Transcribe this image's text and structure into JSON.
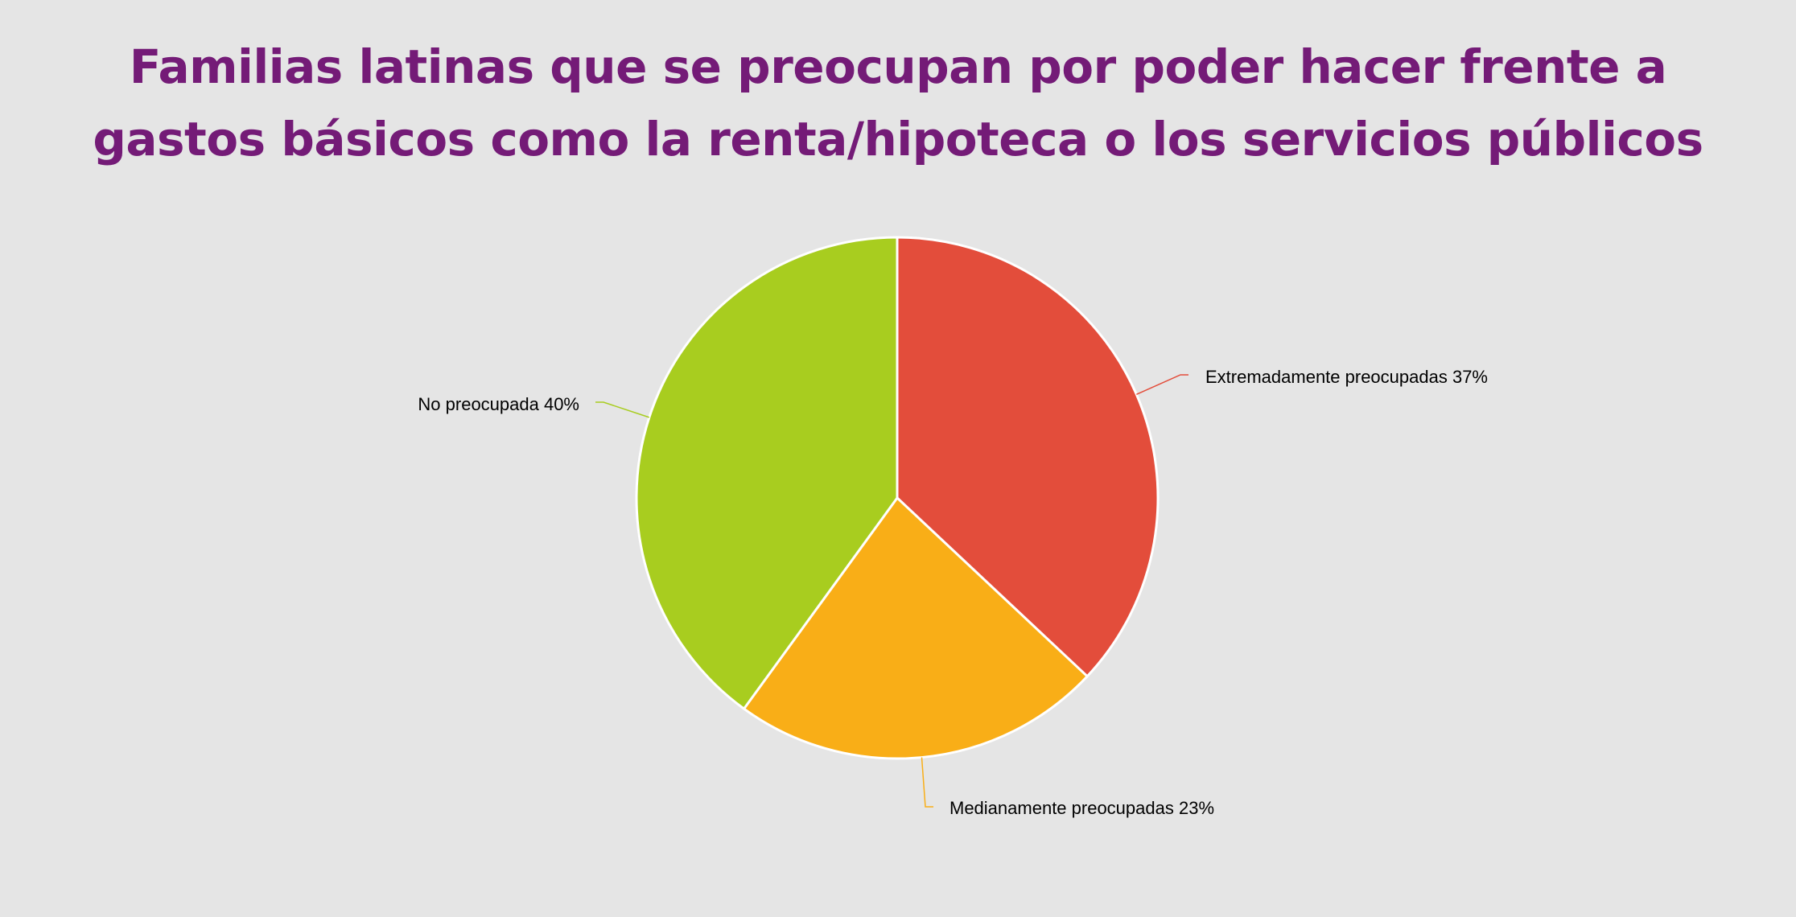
{
  "chart_data": {
    "type": "pie",
    "title": "Familias latinas que se preocupan por poder hacer frente a gastos básicos como la renta/hipoteca o los servicios públicos",
    "categories": [
      "Extremadamente preocupadas",
      "Medianamente preocupadas",
      "No preocupada"
    ],
    "values": [
      37,
      23,
      40
    ],
    "labels": [
      "Extremadamente preocupadas 37%",
      "Medianamente preocupadas 23%",
      "No preocupada 40%"
    ],
    "colors": [
      "#e34d3b",
      "#f9ae17",
      "#a8cd1f"
    ],
    "unit": "%",
    "start_angle_deg": 0,
    "direction": "clockwise",
    "slice_border": "#ffffff",
    "title_color": "#741b77",
    "background": "#e5e5e5",
    "legend": "none"
  }
}
